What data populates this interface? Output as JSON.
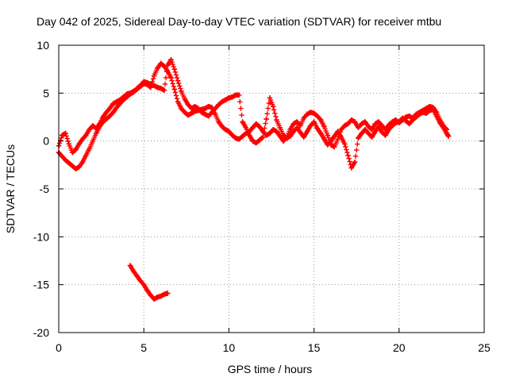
{
  "chart_data": {
    "type": "scatter",
    "title": "Day 042 of 2025, Sidereal Day-to-day VTEC variation (SDTVAR) for receiver mtbu",
    "xlabel": "GPS time / hours",
    "ylabel": "SDTVAR / TECUs",
    "xlim": [
      0,
      25
    ],
    "ylim": [
      -20,
      10
    ],
    "xticks": [
      0,
      5,
      10,
      15,
      20,
      25
    ],
    "yticks": [
      -20,
      -15,
      -10,
      -5,
      0,
      5,
      10
    ],
    "grid": true,
    "marker": "plus",
    "color": "#ff0000",
    "series": [
      {
        "name": "SDTVAR track 1",
        "points": [
          [
            0.0,
            -0.5
          ],
          [
            0.2,
            0.6
          ],
          [
            0.4,
            0.8
          ],
          [
            0.6,
            -0.3
          ],
          [
            0.8,
            -1.2
          ],
          [
            1.0,
            -0.9
          ],
          [
            1.2,
            -0.3
          ],
          [
            1.4,
            0.2
          ],
          [
            1.6,
            0.6
          ],
          [
            1.8,
            1.2
          ],
          [
            2.0,
            1.6
          ],
          [
            2.2,
            1.3
          ],
          [
            2.4,
            1.8
          ],
          [
            2.6,
            2.5
          ],
          [
            2.8,
            3.0
          ],
          [
            3.0,
            3.4
          ],
          [
            3.2,
            3.9
          ],
          [
            3.4,
            4.1
          ],
          [
            3.6,
            4.3
          ],
          [
            3.8,
            4.6
          ],
          [
            4.0,
            4.9
          ],
          [
            4.2,
            5.0
          ],
          [
            4.4,
            5.2
          ],
          [
            4.6,
            5.4
          ],
          [
            4.8,
            5.7
          ],
          [
            5.0,
            6.0
          ],
          [
            5.2,
            5.9
          ],
          [
            5.4,
            5.6
          ],
          [
            5.6,
            6.8
          ],
          [
            5.8,
            7.6
          ],
          [
            6.0,
            8.1
          ],
          [
            6.2,
            7.8
          ],
          [
            6.4,
            7.3
          ],
          [
            6.6,
            6.6
          ],
          [
            6.8,
            5.4
          ],
          [
            7.0,
            4.1
          ],
          [
            7.2,
            3.4
          ],
          [
            7.4,
            3.0
          ],
          [
            7.6,
            2.7
          ],
          [
            7.8,
            2.9
          ],
          [
            8.0,
            3.1
          ],
          [
            8.2,
            3.2
          ],
          [
            8.4,
            3.3
          ],
          [
            8.6,
            3.4
          ],
          [
            8.8,
            3.6
          ],
          [
            9.0,
            3.5
          ],
          [
            9.2,
            2.8
          ],
          [
            9.4,
            2.0
          ],
          [
            9.6,
            1.5
          ],
          [
            9.8,
            1.2
          ],
          [
            10.0,
            1.0
          ],
          [
            10.2,
            0.6
          ],
          [
            10.4,
            0.3
          ],
          [
            10.6,
            0.2
          ],
          [
            10.8,
            0.5
          ],
          [
            11.0,
            0.8
          ],
          [
            11.2,
            1.0
          ],
          [
            11.4,
            1.4
          ],
          [
            11.6,
            1.8
          ],
          [
            11.8,
            1.5
          ],
          [
            12.0,
            1.0
          ],
          [
            12.2,
            0.6
          ],
          [
            12.4,
            0.8
          ],
          [
            12.6,
            1.2
          ],
          [
            12.8,
            1.0
          ],
          [
            13.0,
            0.5
          ],
          [
            13.2,
            0.0
          ],
          [
            13.4,
            0.4
          ],
          [
            13.6,
            1.2
          ],
          [
            13.8,
            1.8
          ],
          [
            14.0,
            2.0
          ],
          [
            14.2,
            1.6
          ],
          [
            14.4,
            2.4
          ],
          [
            14.6,
            2.8
          ],
          [
            14.8,
            3.0
          ],
          [
            15.0,
            2.9
          ],
          [
            15.2,
            2.6
          ],
          [
            15.4,
            2.2
          ],
          [
            15.6,
            1.5
          ],
          [
            15.8,
            0.6
          ],
          [
            16.0,
            -0.4
          ],
          [
            16.2,
            -0.6
          ],
          [
            16.4,
            0.2
          ],
          [
            16.6,
            1.2
          ],
          [
            16.8,
            1.6
          ],
          [
            17.0,
            1.8
          ],
          [
            17.2,
            2.2
          ],
          [
            17.4,
            2.0
          ],
          [
            17.6,
            1.4
          ],
          [
            17.8,
            1.8
          ],
          [
            18.0,
            2.0
          ],
          [
            18.2,
            1.5
          ],
          [
            18.4,
            1.2
          ],
          [
            18.6,
            1.8
          ],
          [
            18.8,
            2.0
          ],
          [
            19.0,
            1.6
          ],
          [
            19.2,
            1.2
          ],
          [
            19.4,
            1.7
          ],
          [
            19.6,
            2.0
          ],
          [
            19.8,
            2.2
          ],
          [
            20.0,
            1.9
          ],
          [
            20.2,
            2.2
          ],
          [
            20.4,
            2.5
          ],
          [
            20.6,
            2.6
          ],
          [
            20.8,
            2.4
          ],
          [
            21.0,
            2.8
          ],
          [
            21.2,
            3.0
          ],
          [
            21.4,
            3.2
          ],
          [
            21.6,
            3.4
          ],
          [
            21.8,
            3.6
          ],
          [
            22.0,
            3.5
          ],
          [
            22.2,
            3.0
          ],
          [
            22.4,
            2.2
          ],
          [
            22.6,
            1.6
          ],
          [
            22.8,
            1.2
          ]
        ]
      },
      {
        "name": "SDTVAR track 2",
        "points": [
          [
            0.0,
            -1.2
          ],
          [
            0.2,
            -1.6
          ],
          [
            0.4,
            -2.0
          ],
          [
            0.6,
            -2.3
          ],
          [
            0.8,
            -2.6
          ],
          [
            1.0,
            -2.9
          ],
          [
            1.2,
            -2.7
          ],
          [
            1.4,
            -2.2
          ],
          [
            1.6,
            -1.5
          ],
          [
            1.8,
            -0.8
          ],
          [
            2.0,
            0.0
          ],
          [
            2.2,
            0.8
          ],
          [
            2.4,
            1.5
          ],
          [
            2.6,
            2.0
          ],
          [
            2.8,
            2.3
          ],
          [
            3.0,
            2.6
          ],
          [
            3.2,
            3.0
          ],
          [
            3.4,
            3.5
          ],
          [
            3.6,
            3.9
          ],
          [
            3.8,
            4.3
          ],
          [
            4.0,
            4.6
          ],
          [
            4.2,
            4.9
          ],
          [
            4.4,
            5.1
          ],
          [
            4.6,
            5.5
          ],
          [
            4.8,
            5.8
          ],
          [
            5.0,
            6.2
          ],
          [
            5.2,
            6.1
          ],
          [
            5.4,
            5.9
          ],
          [
            5.6,
            5.8
          ],
          [
            5.8,
            5.6
          ],
          [
            6.0,
            5.5
          ],
          [
            6.2,
            5.3
          ],
          [
            6.4,
            7.9
          ],
          [
            6.6,
            8.5
          ],
          [
            6.8,
            7.5
          ],
          [
            7.0,
            6.3
          ],
          [
            7.2,
            5.2
          ],
          [
            7.4,
            4.4
          ],
          [
            7.6,
            3.8
          ],
          [
            7.8,
            3.4
          ],
          [
            8.0,
            3.6
          ],
          [
            8.2,
            3.4
          ],
          [
            8.4,
            3.0
          ],
          [
            8.6,
            2.8
          ],
          [
            8.8,
            2.6
          ],
          [
            9.0,
            3.0
          ],
          [
            9.2,
            3.4
          ],
          [
            9.4,
            3.8
          ],
          [
            9.6,
            4.1
          ],
          [
            9.8,
            4.3
          ],
          [
            10.0,
            4.5
          ],
          [
            10.2,
            4.6
          ],
          [
            10.4,
            4.8
          ],
          [
            10.6,
            4.8
          ],
          [
            10.8,
            2.0
          ],
          [
            11.0,
            1.4
          ],
          [
            11.2,
            0.6
          ],
          [
            11.4,
            0.0
          ],
          [
            11.6,
            -0.2
          ],
          [
            11.8,
            0.1
          ],
          [
            12.0,
            0.4
          ],
          [
            12.2,
            2.3
          ],
          [
            12.4,
            4.5
          ],
          [
            12.6,
            3.6
          ],
          [
            12.8,
            2.2
          ],
          [
            13.0,
            1.4
          ],
          [
            13.2,
            0.6
          ],
          [
            13.4,
            0.3
          ],
          [
            13.6,
            0.5
          ],
          [
            13.8,
            1.0
          ],
          [
            14.0,
            1.4
          ],
          [
            14.2,
            0.9
          ],
          [
            14.4,
            0.4
          ],
          [
            14.6,
            1.0
          ],
          [
            14.8,
            1.6
          ],
          [
            15.0,
            2.0
          ],
          [
            15.2,
            1.3
          ],
          [
            15.4,
            0.8
          ],
          [
            15.6,
            0.2
          ],
          [
            15.8,
            -0.4
          ],
          [
            16.0,
            0.0
          ],
          [
            16.2,
            0.5
          ],
          [
            16.4,
            1.0
          ],
          [
            16.6,
            0.4
          ],
          [
            16.8,
            -0.3
          ],
          [
            17.0,
            -1.5
          ],
          [
            17.2,
            -2.8
          ],
          [
            17.4,
            -2.2
          ],
          [
            17.6,
            0.3
          ],
          [
            17.8,
            0.8
          ],
          [
            18.0,
            1.2
          ],
          [
            18.2,
            0.8
          ],
          [
            18.4,
            0.4
          ],
          [
            18.6,
            1.0
          ],
          [
            18.8,
            1.5
          ],
          [
            19.0,
            0.9
          ],
          [
            19.2,
            0.6
          ],
          [
            19.4,
            1.2
          ],
          [
            19.6,
            1.6
          ],
          [
            19.8,
            1.9
          ],
          [
            20.0,
            2.0
          ],
          [
            20.2,
            2.4
          ],
          [
            20.4,
            2.1
          ],
          [
            20.6,
            1.8
          ],
          [
            20.8,
            2.2
          ],
          [
            21.0,
            2.5
          ],
          [
            21.2,
            2.8
          ],
          [
            21.4,
            3.0
          ],
          [
            21.6,
            2.9
          ],
          [
            21.8,
            3.2
          ],
          [
            22.0,
            3.3
          ],
          [
            22.2,
            2.6
          ],
          [
            22.4,
            1.9
          ],
          [
            22.6,
            1.4
          ],
          [
            22.8,
            0.8
          ],
          [
            22.9,
            0.5
          ]
        ]
      },
      {
        "name": "SDTVAR track 3",
        "points": [
          [
            4.2,
            -13.0
          ],
          [
            4.4,
            -13.6
          ],
          [
            4.6,
            -14.1
          ],
          [
            4.8,
            -14.6
          ],
          [
            5.0,
            -15.0
          ],
          [
            5.2,
            -15.6
          ],
          [
            5.4,
            -16.1
          ],
          [
            5.6,
            -16.5
          ],
          [
            5.8,
            -16.3
          ],
          [
            6.0,
            -16.2
          ],
          [
            6.2,
            -16.0
          ],
          [
            6.4,
            -15.9
          ]
        ]
      }
    ]
  }
}
